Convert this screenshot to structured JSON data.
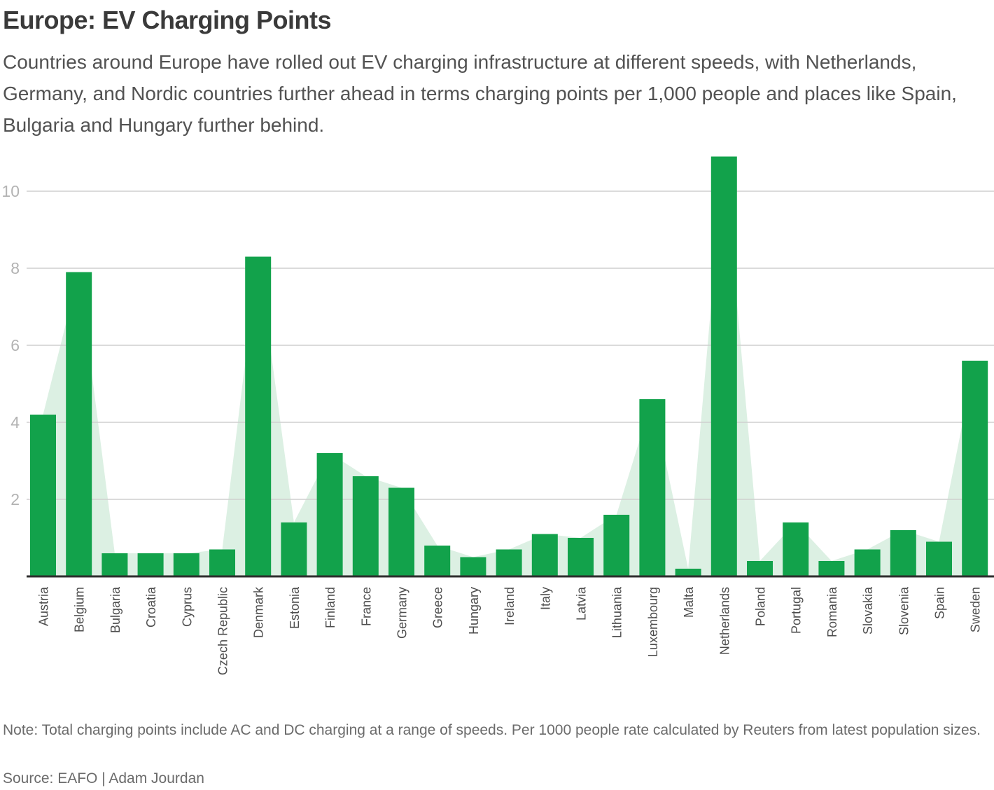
{
  "header": {
    "title": "Europe: EV Charging Points",
    "subtitle": "Countries around Europe have rolled out EV charging infrastructure at different speeds, with Netherlands, Germany, and Nordic countries further ahead in terms charging points per 1,000 people and places like Spain, Bulgaria and Hungary further behind."
  },
  "chart_data": {
    "type": "bar",
    "title": "Europe: EV Charging Points",
    "xlabel": "",
    "ylabel": "",
    "categories": [
      "Austria",
      "Belgium",
      "Bulgaria",
      "Croatia",
      "Cyprus",
      "Czech Republic",
      "Denmark",
      "Estonia",
      "Finland",
      "France",
      "Germany",
      "Greece",
      "Hungary",
      "Ireland",
      "Italy",
      "Latvia",
      "Lithuania",
      "Luxembourg",
      "Malta",
      "Netherlands",
      "Poland",
      "Portugal",
      "Romania",
      "Slovakia",
      "Slovenia",
      "Spain",
      "Sweden"
    ],
    "values": [
      4.2,
      7.9,
      0.6,
      0.6,
      0.6,
      0.7,
      8.3,
      1.4,
      3.2,
      2.6,
      2.3,
      0.8,
      0.5,
      0.7,
      1.1,
      1.0,
      1.6,
      4.6,
      0.2,
      10.9,
      0.4,
      1.4,
      0.4,
      0.7,
      1.2,
      0.9,
      5.6
    ],
    "yticks": [
      2,
      4,
      6,
      8,
      10
    ],
    "ylim": [
      0,
      11.15
    ],
    "grid": "horizontal",
    "legend": "none",
    "overlay": {
      "type": "area",
      "description": "pale green area connecting bar tops, same values as bars"
    },
    "colors": {
      "bar": "#12A24B",
      "area": "#DCF0E3",
      "gridline": "#CFCFCF",
      "axis_line": "#2E2E2E",
      "ytick_label": "#B3B3B3",
      "xtick_label": "#4D4D4D"
    }
  },
  "footer": {
    "note": "Note: Total charging points include AC and DC charging at a range of speeds. Per 1000 people rate calculated by Reuters from latest population sizes.",
    "source": "Source: EAFO | Adam Jourdan"
  }
}
